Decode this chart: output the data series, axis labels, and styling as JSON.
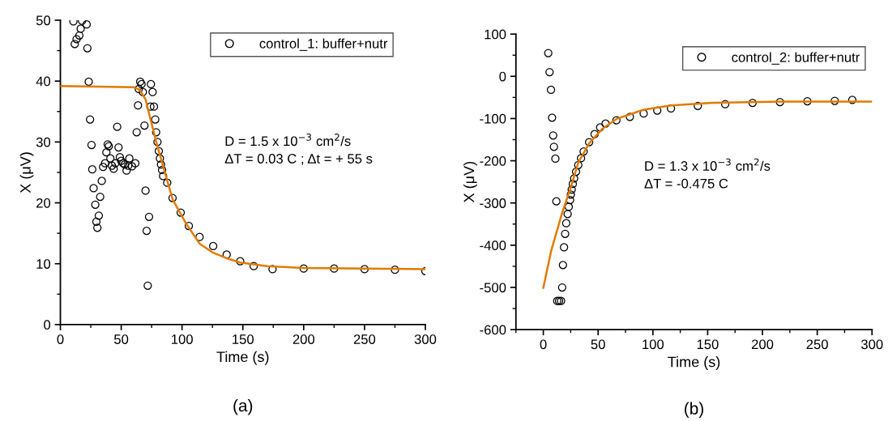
{
  "chart_data": [
    {
      "type": "scatter",
      "xlabel": "Time (s)",
      "ylabel": "X (μV)",
      "xlim": [
        0,
        300
      ],
      "xticks": [
        0,
        50,
        100,
        150,
        200,
        250,
        300
      ],
      "ylim": [
        0,
        50
      ],
      "yticks": [
        0,
        10,
        20,
        30,
        40,
        50
      ],
      "legend": "top right",
      "grid": false,
      "annotations": [
        "D = 1.5 x 10$^{−3}$ cm$^{2}$/s\nΔT = 0.03 C ; Δt = + 55 s",
        "(a)"
      ],
      "series": [
        {
          "name": "control_1: buffer+nutr",
          "color": "#000000",
          "marker": "circle",
          "x": [
            10.7,
            11.8,
            13.3,
            15.6,
            16.7,
            17.8,
            21.6,
            22.2,
            23.3,
            24.4,
            25.6,
            26.2,
            27.3,
            28.7,
            29.6,
            30.4,
            31.6,
            32.7,
            34,
            35.1,
            36.7,
            37.8,
            38.9,
            39.8,
            41.1,
            42.4,
            43.8,
            45.1,
            46.7,
            47.8,
            48.9,
            50,
            51.6,
            52.9,
            54.4,
            55.8,
            56.7,
            58.9,
            61.6,
            62.7,
            63.8,
            64.4,
            65.6,
            66.7,
            67.8,
            69.1,
            70,
            70.9,
            71.8,
            72.9,
            74,
            74.4,
            75.8,
            76.9,
            78,
            78.7,
            79.8,
            80.9,
            81.8,
            82.7,
            83.6,
            84.4,
            87.8,
            92.2,
            98.9,
            105.6,
            114.4,
            125.6,
            136.7,
            147.8,
            158.9,
            174.4,
            200,
            225,
            250,
            275,
            300
          ],
          "values": [
            49.8,
            46.1,
            46.9,
            47.5,
            48.6,
            49.9,
            49.3,
            45.4,
            39.9,
            33.7,
            29.5,
            25.5,
            22.4,
            19.7,
            16.9,
            15.9,
            17.9,
            21.0,
            23.6,
            25.9,
            26.5,
            28.3,
            29.6,
            29.3,
            27.3,
            26.1,
            25.6,
            26.5,
            32.5,
            29.1,
            27.5,
            26.9,
            26.5,
            26.3,
            25.3,
            26.1,
            27.3,
            26.0,
            26.5,
            31.6,
            36.0,
            38.7,
            39.9,
            39.5,
            38.2,
            32.7,
            22.0,
            15.4,
            6.4,
            17.7,
            35.8,
            39.5,
            38.2,
            35.8,
            33.7,
            31.6,
            30.0,
            28.5,
            27.3,
            26.3,
            25.4,
            24.4,
            23.3,
            20.8,
            18.4,
            16.2,
            14.4,
            12.9,
            11.5,
            10.4,
            9.6,
            9.1,
            9.2,
            9.2,
            9.1,
            9.0,
            8.8
          ]
        },
        {
          "type": "line",
          "color": "#e07b00",
          "x": [
            0,
            30,
            60,
            65,
            70,
            78.9,
            92.2,
            103.3,
            114.4,
            125.6,
            136.7,
            147.8,
            170,
            200,
            250,
            300
          ],
          "values": [
            39.2,
            39.1,
            39.0,
            38.6,
            37.0,
            29.9,
            20.6,
            16.6,
            13.3,
            11.8,
            10.9,
            10.2,
            9.6,
            9.3,
            9.2,
            9.1
          ]
        }
      ]
    },
    {
      "type": "scatter",
      "xlabel": "Time (s)",
      "ylabel": "X (μV)",
      "xlim": [
        -25,
        300
      ],
      "xticks": [
        0,
        50,
        100,
        150,
        200,
        250,
        300
      ],
      "ylim": [
        -600,
        100
      ],
      "yticks": [
        -600,
        -500,
        -400,
        -300,
        -200,
        -100,
        0,
        100
      ],
      "legend": "top right",
      "grid": false,
      "annotations": [
        "D = 1.3 x 10$^{−3}$ cm$^{2}$/s\nΔT = -0.475 C",
        "(b)"
      ],
      "series": [
        {
          "name": "control_2: buffer+nutr",
          "color": "#000000",
          "marker": "circle",
          "x": [
            4.5,
            5.7,
            7.0,
            8.0,
            9.0,
            9.7,
            11.0,
            11.9,
            12.7,
            14.4,
            16.2,
            17.2,
            17.9,
            18.9,
            19.9,
            20.9,
            22.2,
            23.2,
            24.4,
            25.1,
            25.9,
            26.9,
            28.1,
            29.9,
            31.9,
            34.4,
            36.8,
            41.8,
            46.8,
            51.8,
            56.8,
            66.7,
            79,
            91.6,
            104,
            116.5,
            141,
            166,
            191,
            216,
            241,
            266,
            282
          ],
          "values": [
            55,
            10,
            -32,
            -98,
            -140,
            -167,
            -195,
            -296,
            -532,
            -532,
            -532,
            -500,
            -447,
            -405,
            -373,
            -348,
            -326,
            -309,
            -293,
            -280,
            -268,
            -255,
            -242,
            -226,
            -210,
            -194,
            -178,
            -156,
            -137,
            -121,
            -112,
            -104,
            -96,
            -88,
            -81,
            -76,
            -70,
            -66,
            -63,
            -61,
            -59,
            -58,
            -56
          ]
        },
        {
          "type": "line",
          "color": "#e07b00",
          "x": [
            0,
            7,
            17,
            24.4,
            32,
            41.8,
            54,
            66.7,
            91.6,
            116.5,
            154,
            216,
            300
          ],
          "values": [
            -501,
            -415,
            -325,
            -268,
            -204,
            -159,
            -124,
            -101,
            -79,
            -69,
            -63,
            -60,
            -60
          ]
        }
      ]
    }
  ]
}
